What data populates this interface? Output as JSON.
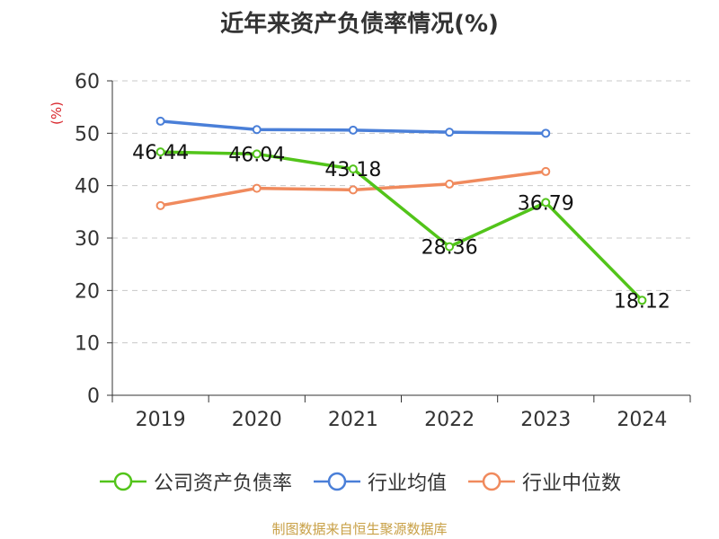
{
  "chart_data": {
    "type": "line",
    "title": "近年来资产负债率情况(%)",
    "ylabel": "(%)",
    "xlabel": "",
    "categories": [
      "2019",
      "2020",
      "2021",
      "2022",
      "2023",
      "2024"
    ],
    "ylim": [
      0,
      60
    ],
    "yticks": [
      0,
      10,
      20,
      30,
      40,
      50,
      60
    ],
    "grid": true,
    "legend_position": "bottom",
    "series": [
      {
        "name": "公司资产负债率",
        "color": "#52c41a",
        "values": [
          46.44,
          46.04,
          43.18,
          28.36,
          36.79,
          18.12
        ],
        "labels": [
          "46.44",
          "46.04",
          "43.18",
          "28.36",
          "36.79",
          "18.12"
        ]
      },
      {
        "name": "行业均值",
        "color": "#4a7fd8",
        "values": [
          52.3,
          50.7,
          50.6,
          50.2,
          50.0,
          null
        ]
      },
      {
        "name": "行业中位数",
        "color": "#f08a5d",
        "values": [
          36.2,
          39.5,
          39.2,
          40.3,
          42.7,
          null
        ]
      }
    ]
  },
  "source": "制图数据来自恒生聚源数据库"
}
